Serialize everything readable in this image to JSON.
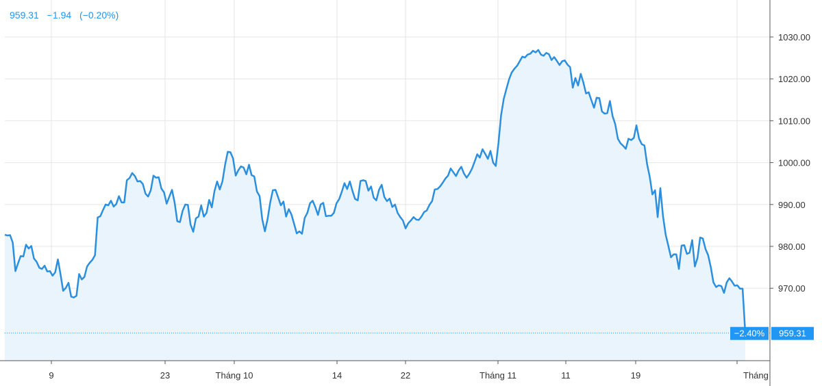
{
  "header": {
    "price": "959.31",
    "change": "−1.94",
    "change_pct": "(−0.20%)"
  },
  "colors": {
    "line": "#2b8fde",
    "area": "#eaf4fc",
    "accent": "#2196f3",
    "grid": "#e6e6e6"
  },
  "chart_data": {
    "type": "area",
    "title": "",
    "xlabel": "",
    "ylabel": "",
    "ylim": [
      950.9,
      1041.9
    ],
    "y_ticks": [
      "1030.00",
      "1020.00",
      "1010.00",
      "1000.00",
      "990.00",
      "980.00",
      "970.00"
    ],
    "x_ticks": [
      "9",
      "23",
      "Tháng 10",
      "14",
      "22",
      "Tháng 11",
      "11",
      "19",
      "Tháng Mười ha"
    ],
    "last_value_label": "959.31",
    "change_badge": "−2.40%",
    "series": [
      {
        "values": [
          982.8,
          982.6,
          982.7,
          980.9,
          974.1,
          976.0,
          977.7,
          977.6,
          980.4,
          979.5,
          980.1,
          977.1,
          976.3,
          974.9,
          974.6,
          975.4,
          974.0,
          974.1,
          973.0,
          973.8,
          976.9,
          973.3,
          969.4,
          970.1,
          971.3,
          968.0,
          967.8,
          968.2,
          973.4,
          972.1,
          972.7,
          975.2,
          976.1,
          976.8,
          977.9,
          986.9,
          987.2,
          988.7,
          990.0,
          989.8,
          990.9,
          989.5,
          990.1,
          992.0,
          990.5,
          990.5,
          995.8,
          996.3,
          997.5,
          996.8,
          995.5,
          995.6,
          994.9,
          992.6,
          991.9,
          993.4,
          996.9,
          996.4,
          996.5,
          993.8,
          992.9,
          990.2,
          991.9,
          993.5,
          990.4,
          986.0,
          985.8,
          988.5,
          990.0,
          989.9,
          985.2,
          983.5,
          986.7,
          987.1,
          989.8,
          987.1,
          988.0,
          991.1,
          989.3,
          993.2,
          995.5,
          993.6,
          995.5,
          999.5,
          1002.6,
          1002.5,
          1001.0,
          996.9,
          998.2,
          999.1,
          998.8,
          997.2,
          999.5,
          997.0,
          996.7,
          993.1,
          992.0,
          986.5,
          983.6,
          986.5,
          990.5,
          993.4,
          993.5,
          991.7,
          989.8,
          990.7,
          987.1,
          988.9,
          987.6,
          985.4,
          983.1,
          983.6,
          983.0,
          986.8,
          988.0,
          990.3,
          990.9,
          989.4,
          987.5,
          990.0,
          990.4,
          987.2,
          987.3,
          987.3,
          988.0,
          990.3,
          991.3,
          993.1,
          995.1,
          993.7,
          995.5,
          993.2,
          991.3,
          991.0,
          995.6,
          995.8,
          995.6,
          993.3,
          994.3,
          991.6,
          991.0,
          993.5,
          994.7,
          991.8,
          990.8,
          991.4,
          989.4,
          990.0,
          988.0,
          987.0,
          986.2,
          984.3,
          985.5,
          986.2,
          987.0,
          986.4,
          986.3,
          987.1,
          988.2,
          988.6,
          989.9,
          990.8,
          993.6,
          993.7,
          994.3,
          995.2,
          996.2,
          996.9,
          998.6,
          997.7,
          996.8,
          998.1,
          999.0,
          997.4,
          996.4,
          997.3,
          998.5,
          1000.2,
          1002.0,
          1001.2,
          1003.2,
          1002.1,
          1000.9,
          1002.8,
          1000.0,
          999.2,
          1004.7,
          1011.3,
          1015.2,
          1017.6,
          1019.9,
          1021.5,
          1022.4,
          1023.1,
          1024.2,
          1025.3,
          1025.1,
          1025.8,
          1026.0,
          1026.7,
          1026.3,
          1026.9,
          1025.8,
          1025.5,
          1026.2,
          1025.9,
          1024.5,
          1025.2,
          1024.3,
          1023.3,
          1024.2,
          1024.4,
          1023.4,
          1022.8,
          1017.9,
          1020.2,
          1018.4,
          1021.2,
          1019.1,
          1016.5,
          1016.8,
          1014.9,
          1013.1,
          1015.5,
          1015.4,
          1012.2,
          1011.7,
          1011.8,
          1014.7,
          1011.1,
          1009.2,
          1005.7,
          1004.6,
          1004.0,
          1003.3,
          1005.7,
          1005.4,
          1005.9,
          1008.9,
          1005.7,
          1004.4,
          1004.1,
          999.7,
          996.6,
          992.4,
          993.4,
          987.0,
          993.9,
          987.2,
          982.8,
          980.2,
          977.4,
          978.1,
          978.1,
          974.6,
          980.2,
          980.3,
          978.2,
          978.5,
          981.5,
          975.2,
          977.3,
          982.1,
          981.9,
          979.4,
          977.9,
          975.1,
          971.4,
          970.3,
          970.7,
          970.5,
          968.9,
          971.4,
          972.4,
          971.6,
          970.6,
          970.7,
          969.9,
          969.9,
          959.3
        ]
      }
    ]
  }
}
